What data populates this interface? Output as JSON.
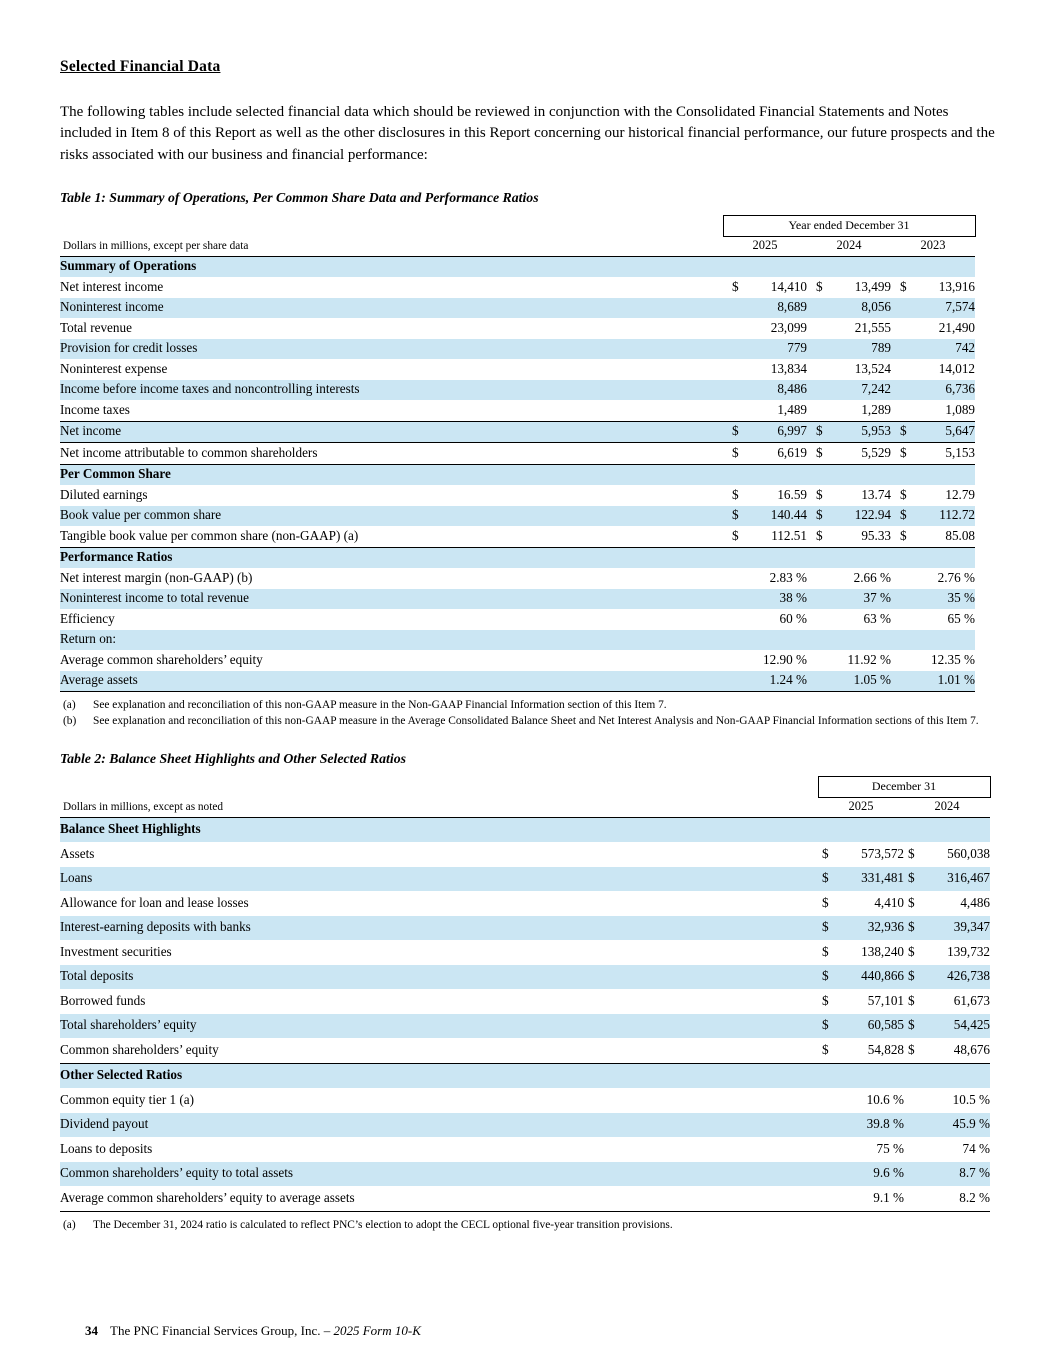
{
  "page": {
    "title": "Selected Financial Data",
    "intro": "The following tables include selected financial data which should be reviewed in conjunction with the Consolidated Financial Statements and Notes included in Item 8 of this Report as well as the other disclosures in this Report concerning our historical financial performance, our future prospects and the risks associated with our business and financial performance:",
    "footer": {
      "page_number": "34",
      "company": "The PNC Financial Services Group, Inc. –",
      "form": "2025 Form 10-K"
    }
  },
  "table1": {
    "title": "Table 1: Summary of Operations, Per Common Share Data and Performance Ratios",
    "period_header": "Year ended December 31",
    "units_note": "Dollars in millions, except per share data",
    "columns": [
      "2025",
      "2024",
      "2023"
    ],
    "rows": [
      {
        "type": "section",
        "label": "Summary of Operations"
      },
      {
        "label": "Net interest income",
        "values": [
          "$ 14,410",
          "$ 13,499",
          "$ 13,916"
        ],
        "shade": false
      },
      {
        "label": "Noninterest income",
        "values": [
          "8,689",
          "8,056",
          "7,574"
        ],
        "shade": true
      },
      {
        "label": "Total revenue",
        "values": [
          "23,099",
          "21,555",
          "21,490"
        ],
        "shade": false
      },
      {
        "label": "Provision for credit losses",
        "values": [
          "779",
          "789",
          "742"
        ],
        "shade": true
      },
      {
        "label": "Noninterest expense",
        "values": [
          "13,834",
          "13,524",
          "14,012"
        ],
        "shade": false
      },
      {
        "label": "Income before income taxes and noncontrolling interests",
        "values": [
          "8,486",
          "7,242",
          "6,736"
        ],
        "shade": true
      },
      {
        "label": "Income taxes",
        "values": [
          "1,489",
          "1,289",
          "1,089"
        ],
        "shade": false
      },
      {
        "label": "Net income",
        "values": [
          "$ 6,997",
          "$ 5,953",
          "$ 5,647"
        ],
        "shade": true,
        "rules": [
          "top",
          "bottom"
        ]
      },
      {
        "label": "Net income attributable to common shareholders",
        "values": [
          "$ 6,619",
          "$ 5,529",
          "$ 5,153"
        ],
        "shade": false,
        "rules": [
          "bottom"
        ]
      },
      {
        "type": "section",
        "label": "Per Common Share"
      },
      {
        "label": "Diluted earnings",
        "values": [
          "$ 16.59",
          "$ 13.74",
          "$ 12.79"
        ],
        "shade": false
      },
      {
        "label": "Book value per common share",
        "values": [
          "$ 140.44",
          "$ 122.94",
          "$ 112.72"
        ],
        "shade": true
      },
      {
        "label": "Tangible book value per common share (non-GAAP) (a)",
        "values": [
          "$ 112.51",
          "$ 95.33",
          "$ 85.08"
        ],
        "shade": false,
        "rules": [
          "bottom"
        ]
      },
      {
        "type": "section",
        "label": "Performance Ratios"
      },
      {
        "label": "Net interest margin (non-GAAP) (b)",
        "values": [
          "2.83 %",
          "2.66 %",
          "2.76 %"
        ],
        "shade": false
      },
      {
        "label": "Noninterest income to total revenue",
        "values": [
          "38 %",
          "37 %",
          "35 %"
        ],
        "shade": true
      },
      {
        "label": "Efficiency",
        "values": [
          "60 %",
          "63 %",
          "65 %"
        ],
        "shade": false
      },
      {
        "label": "Return on:",
        "values": [
          "",
          "",
          ""
        ],
        "shade": true
      },
      {
        "label": "Average common shareholders’ equity",
        "values": [
          "12.90 %",
          "11.92 %",
          "12.35 %"
        ],
        "shade": false,
        "indent": true
      },
      {
        "label": "Average assets",
        "values": [
          "1.24 %",
          "1.05 %",
          "1.01 %"
        ],
        "shade": true,
        "indent": true,
        "rules": [
          "bottom"
        ]
      }
    ],
    "footnotes": [
      {
        "marker": "(a)",
        "text": "See explanation and reconciliation of this non-GAAP measure in the Non-GAAP Financial Information section of this Item 7."
      },
      {
        "marker": "(b)",
        "text": "See explanation and reconciliation of this non-GAAP measure in the Average Consolidated Balance Sheet and Net Interest Analysis and Non-GAAP Financial Information sections of this Item 7."
      }
    ]
  },
  "table2": {
    "title": "Table 2: Balance Sheet Highlights and Other Selected Ratios",
    "period_header": "December 31",
    "units_note": "Dollars in millions, except as noted",
    "columns": [
      "2025",
      "2024"
    ],
    "rows": [
      {
        "type": "section",
        "label": "Balance Sheet Highlights"
      },
      {
        "label": "Assets",
        "values": [
          "$573,572",
          "$560,038"
        ],
        "shade": false
      },
      {
        "label": "Loans",
        "values": [
          "$331,481",
          "$316,467"
        ],
        "shade": true
      },
      {
        "label": "Allowance for loan and lease losses",
        "values": [
          "$ 4,410",
          "$ 4,486"
        ],
        "shade": false
      },
      {
        "label": "Interest-earning deposits with banks",
        "values": [
          "$ 32,936",
          "$ 39,347"
        ],
        "shade": true
      },
      {
        "label": "Investment securities",
        "values": [
          "$138,240",
          "$139,732"
        ],
        "shade": false
      },
      {
        "label": "Total deposits",
        "values": [
          "$440,866",
          "$426,738"
        ],
        "shade": true
      },
      {
        "label": "Borrowed funds",
        "values": [
          "$ 57,101",
          "$ 61,673"
        ],
        "shade": false
      },
      {
        "label": "Total shareholders’ equity",
        "values": [
          "$ 60,585",
          "$ 54,425"
        ],
        "shade": true
      },
      {
        "label": "Common shareholders’ equity",
        "values": [
          "$ 54,828",
          "$ 48,676"
        ],
        "shade": false,
        "rules": [
          "bottom"
        ]
      },
      {
        "type": "section",
        "label": "Other Selected Ratios"
      },
      {
        "label": "Common equity tier 1 (a)",
        "values": [
          "10.6 %",
          "10.5 %"
        ],
        "shade": false
      },
      {
        "label": "Dividend payout",
        "values": [
          "39.8 %",
          "45.9 %"
        ],
        "shade": true
      },
      {
        "label": "Loans to deposits",
        "values": [
          "75 %",
          "74 %"
        ],
        "shade": false
      },
      {
        "label": "Common shareholders’ equity to total assets",
        "values": [
          "9.6 %",
          "8.7 %"
        ],
        "shade": true
      },
      {
        "label": "Average common shareholders’ equity to average assets",
        "values": [
          "9.1 %",
          "8.2 %"
        ],
        "shade": false,
        "rules": [
          "bottom"
        ]
      }
    ],
    "footnotes": [
      {
        "marker": "(a)",
        "text": "The December 31, 2024 ratio is calculated to reflect PNC’s election to adopt the CECL optional five-year transition provisions."
      }
    ]
  }
}
